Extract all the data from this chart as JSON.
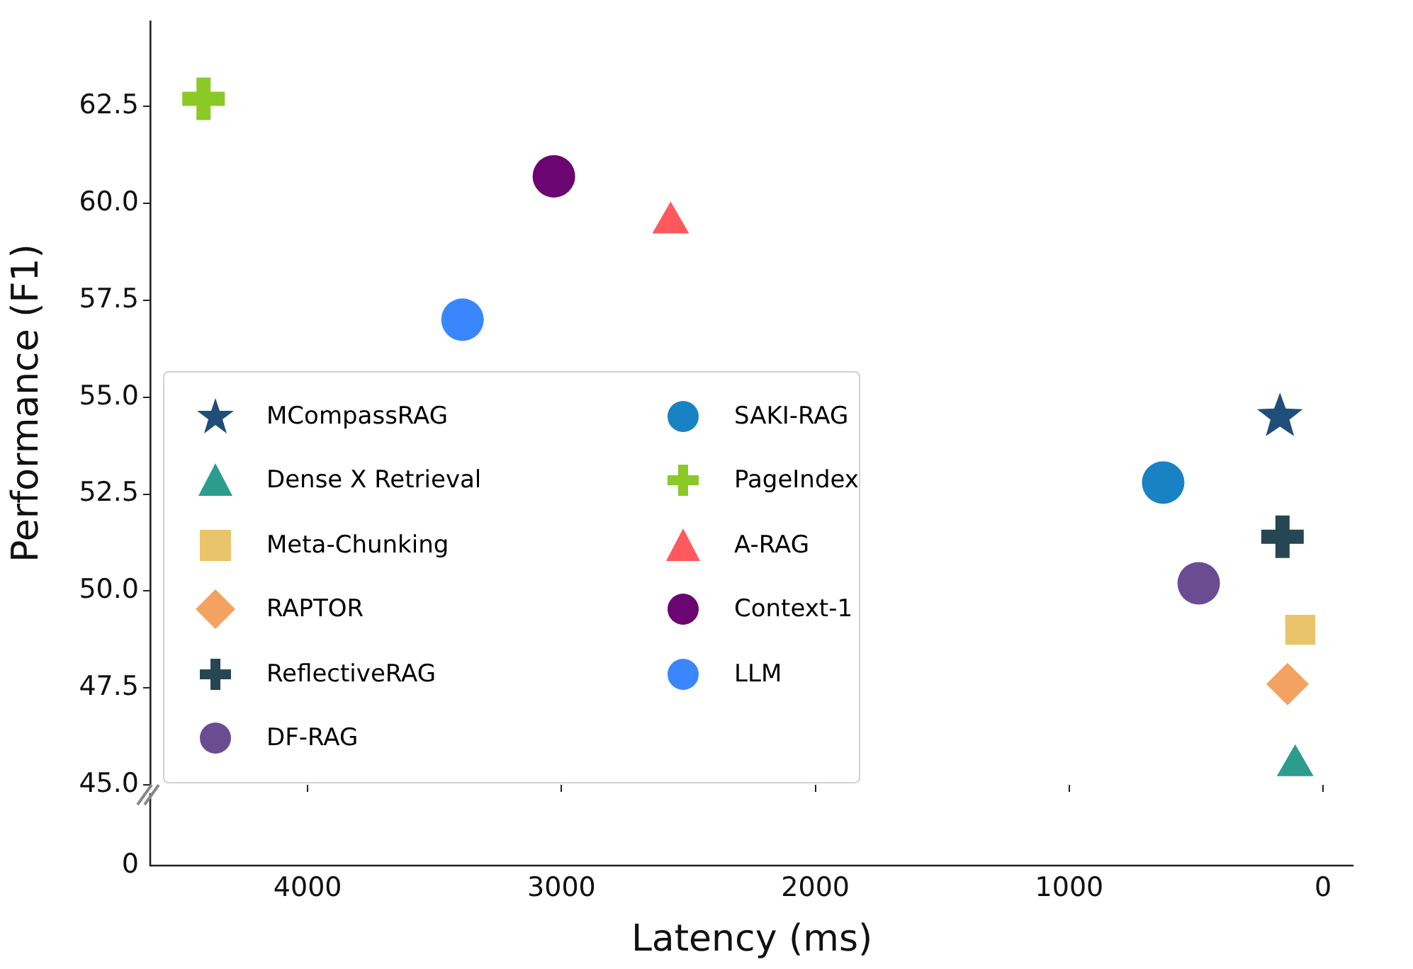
{
  "chart_data": {
    "type": "scatter",
    "ylabel": "Performance (F1)",
    "xlabel": "Latency (ms)",
    "xlim": [
      4620,
      -120
    ],
    "xticks": [
      4000,
      3000,
      2000,
      1000,
      0
    ],
    "ylim": [
      45,
      64.7
    ],
    "yticks": [
      {
        "value": 45,
        "label": "45.0"
      },
      47.5,
      {
        "value": 50,
        "label": "50.0"
      },
      52.5,
      {
        "value": 55,
        "label": "55.0"
      },
      57.5,
      {
        "value": 60,
        "label": "60.0"
      },
      62.5
    ],
    "grid": false,
    "legend": "bottom left",
    "annotations": [
      "0"
    ],
    "series": [
      {
        "name": "MCompassRAG",
        "color": "#1f4e79",
        "marker": "star",
        "x": [
          170
        ],
        "values": [
          54.5
        ]
      },
      {
        "name": "Dense X Retrieval",
        "color": "#2a9d8f",
        "marker": "triangle",
        "x": [
          110
        ],
        "values": [
          45.5
        ]
      },
      {
        "name": "Meta-Chunking",
        "color": "#e9c46a",
        "marker": "square",
        "x": [
          90
        ],
        "values": [
          49.0
        ]
      },
      {
        "name": "RAPTOR",
        "color": "#f4a261",
        "marker": "diamond",
        "x": [
          140
        ],
        "values": [
          47.6
        ]
      },
      {
        "name": "ReflectiveRAG",
        "color": "#264653",
        "marker": "cross",
        "x": [
          160
        ],
        "values": [
          51.4
        ]
      },
      {
        "name": "DF-RAG",
        "color": "#6a4c93",
        "marker": "circle",
        "x": [
          490
        ],
        "values": [
          50.2
        ]
      },
      {
        "name": "SAKI-RAG",
        "color": "#1982c4",
        "marker": "circle",
        "x": [
          630
        ],
        "values": [
          52.8
        ]
      },
      {
        "name": "PageIndex",
        "color": "#8ac926",
        "marker": "cross",
        "x": [
          4410
        ],
        "values": [
          62.7
        ]
      },
      {
        "name": "A-RAG",
        "color": "#ff595e",
        "marker": "triangle",
        "x": [
          2570
        ],
        "values": [
          59.5
        ]
      },
      {
        "name": "Context-1",
        "color": "#6a0572",
        "marker": "circle",
        "x": [
          3030
        ],
        "values": [
          60.7
        ]
      },
      {
        "name": "LLM",
        "color": "#3a86ff",
        "marker": "circle",
        "x": [
          3390
        ],
        "values": [
          57.0
        ]
      }
    ]
  }
}
